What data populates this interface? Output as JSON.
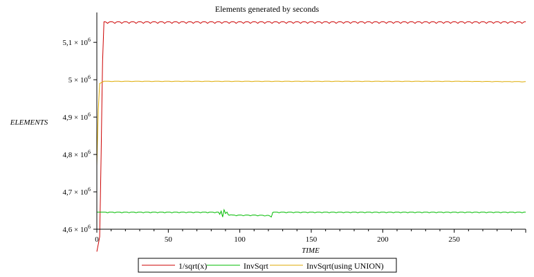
{
  "chart_data": {
    "type": "line",
    "title": "Elements generated by seconds",
    "xlabel": "TIME",
    "ylabel": "ELEMENTS",
    "xlim": [
      0,
      300
    ],
    "ylim": [
      4600000,
      5180000
    ],
    "grid": false,
    "legend_position": "bottom",
    "x_ticks": [
      0,
      50,
      100,
      150,
      200,
      250
    ],
    "x_tick_labels": [
      "0",
      "50",
      "100",
      "150",
      "200",
      "250"
    ],
    "y_ticks": [
      4600000,
      4700000,
      4800000,
      4900000,
      5000000,
      5100000
    ],
    "y_tick_labels": [
      {
        "mantissa": "4,6",
        "sep": " × ",
        "base": "10",
        "exp": "6"
      },
      {
        "mantissa": "4,7",
        "sep": " × ",
        "base": "10",
        "exp": "6"
      },
      {
        "mantissa": "4,8",
        "sep": " × ",
        "base": "10",
        "exp": "6"
      },
      {
        "mantissa": "4,9",
        "sep": " × ",
        "base": "10",
        "exp": "6"
      },
      {
        "mantissa": "5",
        "sep": " × ",
        "base": "10",
        "exp": "6"
      },
      {
        "mantissa": "5,1",
        "sep": " × ",
        "base": "10",
        "exp": "6"
      }
    ],
    "series": [
      {
        "name": "1/sqrt(x)",
        "color": "#cc0000",
        "points": [
          [
            0,
            4540000
          ],
          [
            2,
            4580000
          ],
          [
            3,
            4800000
          ],
          [
            4,
            5050000
          ],
          [
            5,
            5155000
          ],
          [
            10,
            5155000
          ],
          [
            50,
            5155000
          ],
          [
            100,
            5155000
          ],
          [
            150,
            5155000
          ],
          [
            200,
            5155000
          ],
          [
            250,
            5155000
          ],
          [
            300,
            5155000
          ]
        ],
        "ripple_amplitude": 4000,
        "ripple_period": 5
      },
      {
        "name": "InvSqrt",
        "color": "#00bb00",
        "points": [
          [
            0,
            4646000
          ],
          [
            85,
            4646000
          ],
          [
            86,
            4640000
          ],
          [
            87,
            4650000
          ],
          [
            88,
            4634000
          ],
          [
            89,
            4652000
          ],
          [
            90,
            4642000
          ],
          [
            91,
            4646000
          ],
          [
            92,
            4640000
          ],
          [
            95,
            4638000
          ],
          [
            110,
            4638000
          ],
          [
            120,
            4637000
          ],
          [
            122,
            4634000
          ],
          [
            123,
            4646000
          ],
          [
            150,
            4646000
          ],
          [
            200,
            4646000
          ],
          [
            250,
            4646000
          ],
          [
            300,
            4646000
          ]
        ],
        "ripple_amplitude": 2000,
        "ripple_period": 5
      },
      {
        "name": "InvSqrt(using UNION)",
        "color": "#ddaa00",
        "points": [
          [
            0,
            4770000
          ],
          [
            1,
            4920000
          ],
          [
            2,
            4990000
          ],
          [
            5,
            4996000
          ],
          [
            50,
            4996000
          ],
          [
            100,
            4996000
          ],
          [
            150,
            4996000
          ],
          [
            200,
            4996000
          ],
          [
            250,
            4996000
          ],
          [
            300,
            4995000
          ]
        ],
        "ripple_amplitude": 900,
        "ripple_period": 7
      }
    ]
  }
}
